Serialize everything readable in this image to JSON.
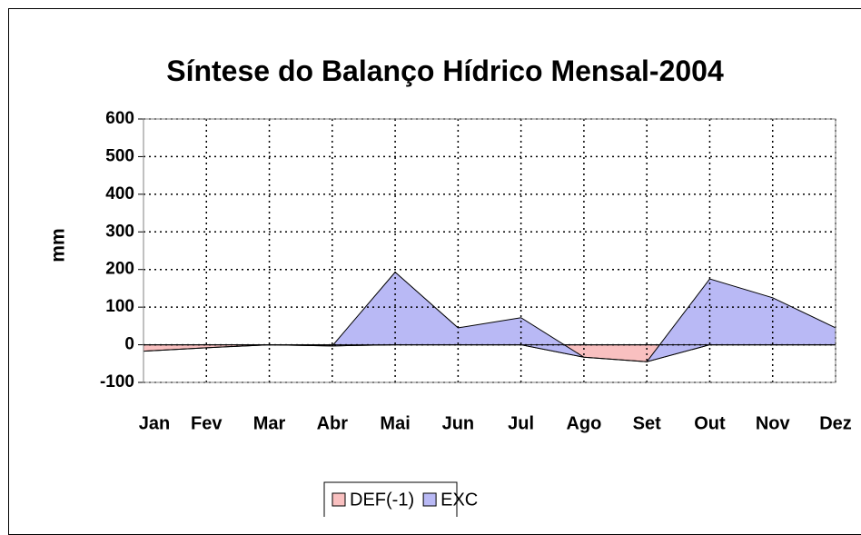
{
  "chart_data": {
    "type": "area",
    "stacked": true,
    "title": "Síntese do Balanço Hídrico Mensal-2004",
    "y_label": "mm",
    "categories": [
      "Jan",
      "Fev",
      "Mar",
      "Abr",
      "Mai",
      "Jun",
      "Jul",
      "Ago",
      "Set",
      "Out",
      "Nov",
      "Dez"
    ],
    "series": [
      {
        "name": "DEF(-1)",
        "color": "#f9c0c0",
        "values": [
          -17,
          -8,
          0,
          -3,
          0,
          0,
          0,
          -33,
          -45,
          0,
          0,
          0
        ]
      },
      {
        "name": "EXC",
        "color": "#b9b9f5",
        "values": [
          0,
          0,
          0,
          0,
          193,
          45,
          72,
          0,
          0,
          175,
          125,
          45
        ]
      }
    ],
    "ylim": [
      -100,
      600
    ],
    "yticks": [
      -100,
      0,
      100,
      200,
      300,
      400,
      500,
      600
    ],
    "grid": true,
    "legend": "bottom"
  }
}
